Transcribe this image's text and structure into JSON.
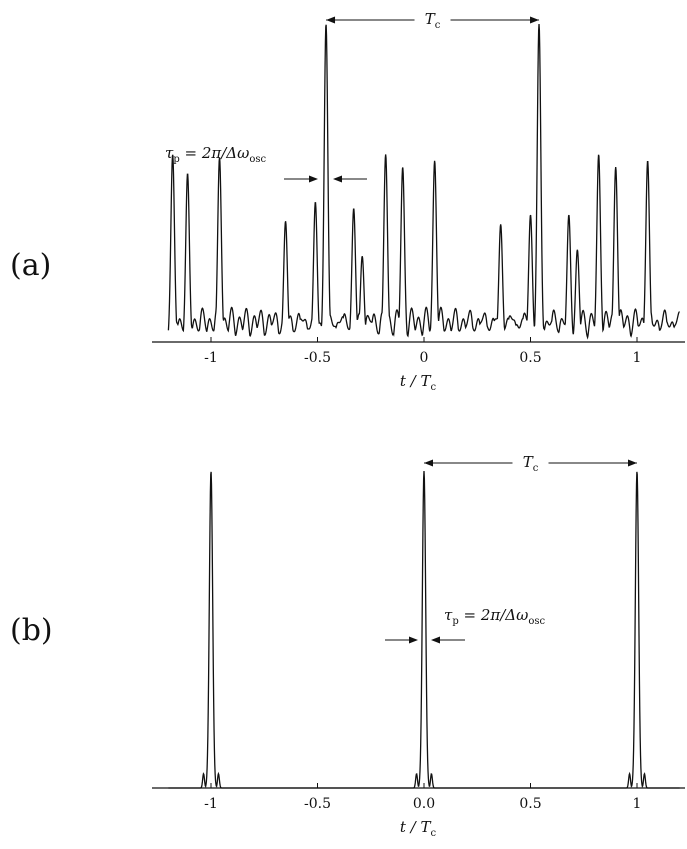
{
  "chart_data": [
    {
      "type": "line",
      "panel": "(a)",
      "xlabel": "t / T",
      "xlabel_sub": "c",
      "xlim": [
        -1.2,
        1.2
      ],
      "ylim": [
        0,
        1.0
      ],
      "xticks": [
        -1,
        -0.5,
        0,
        0.5,
        1
      ],
      "xtick_labels": [
        "-1",
        "-0.5",
        "0",
        "0.5",
        "1"
      ],
      "grid": false,
      "description_of_series": "intensity with random-phase modes",
      "peaks": {
        "x": [
          -1.18,
          -1.11,
          -0.96,
          -0.65,
          -0.51,
          -0.46,
          -0.33,
          -0.29,
          -0.18,
          -0.1,
          0.05,
          0.36,
          0.5,
          0.54,
          0.68,
          0.72,
          0.82,
          0.9,
          1.05
        ],
        "y": [
          0.59,
          0.53,
          0.58,
          0.38,
          0.44,
          1.0,
          0.42,
          0.27,
          0.59,
          0.55,
          0.57,
          0.37,
          0.4,
          1.0,
          0.4,
          0.29,
          0.59,
          0.55,
          0.57
        ]
      },
      "annotations": {
        "period_label": "T",
        "period_sub": "c",
        "period_from": -0.46,
        "period_to": 0.54,
        "width_label": "τ",
        "width_label_sub": "p",
        "width_label_rest": " = 2π/Δω",
        "width_label_sub2": "osc"
      }
    },
    {
      "type": "line",
      "panel": "(b)",
      "xlabel": "t / T",
      "xlabel_sub": "c",
      "xlim": [
        -1.2,
        1.2
      ],
      "ylim": [
        0,
        1.0
      ],
      "xticks": [
        -1,
        -0.5,
        0,
        0.5,
        1
      ],
      "xtick_labels": [
        "-1",
        "-0.5",
        "0.0",
        "0.5",
        "1"
      ],
      "grid": false,
      "peaks": {
        "x": [
          -1.0,
          0.0,
          1.0
        ],
        "y": [
          1.0,
          1.0,
          1.0
        ]
      },
      "annotations": {
        "period_label": "T",
        "period_sub": "c",
        "period_from": 0.0,
        "period_to": 1.0,
        "width_label": "τ",
        "width_label_sub": "p",
        "width_label_rest": " = 2π/Δω",
        "width_label_sub2": "osc"
      }
    }
  ]
}
